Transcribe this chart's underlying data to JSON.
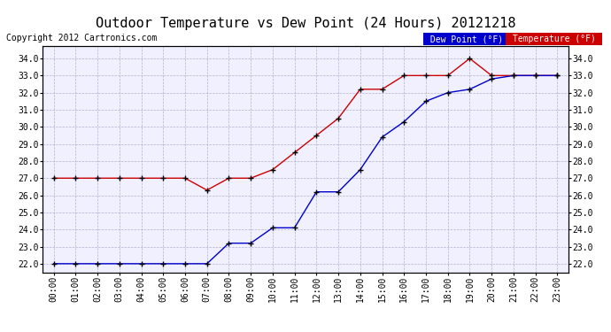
{
  "title": "Outdoor Temperature vs Dew Point (24 Hours) 20121218",
  "copyright": "Copyright 2012 Cartronics.com",
  "hours": [
    "00:00",
    "01:00",
    "02:00",
    "03:00",
    "04:00",
    "05:00",
    "06:00",
    "07:00",
    "08:00",
    "09:00",
    "10:00",
    "11:00",
    "12:00",
    "13:00",
    "14:00",
    "15:00",
    "16:00",
    "17:00",
    "18:00",
    "19:00",
    "20:00",
    "21:00",
    "22:00",
    "23:00"
  ],
  "temperature": [
    27.0,
    27.0,
    27.0,
    27.0,
    27.0,
    27.0,
    27.0,
    26.3,
    27.0,
    27.0,
    27.5,
    28.5,
    29.5,
    30.5,
    32.2,
    32.2,
    33.0,
    33.0,
    33.0,
    34.0,
    33.0,
    33.0,
    33.0,
    33.0
  ],
  "dew_point": [
    22.0,
    22.0,
    22.0,
    22.0,
    22.0,
    22.0,
    22.0,
    22.0,
    23.2,
    23.2,
    24.1,
    24.1,
    26.2,
    26.2,
    27.5,
    29.4,
    30.3,
    31.5,
    32.0,
    32.2,
    32.8,
    33.0,
    33.0,
    33.0
  ],
  "temp_color": "#cc0000",
  "dew_color": "#0000cc",
  "ylim": [
    21.5,
    34.7
  ],
  "yticks": [
    22.0,
    23.0,
    24.0,
    25.0,
    26.0,
    27.0,
    28.0,
    29.0,
    30.0,
    31.0,
    32.0,
    33.0,
    34.0
  ],
  "bg_color": "#ffffff",
  "plot_bg_color": "#f0f0ff",
  "grid_color": "#aaaacc",
  "legend_dew_bg": "#0000cc",
  "legend_temp_bg": "#cc0000",
  "legend_text_color": "#ffffff",
  "title_fontsize": 11,
  "tick_fontsize": 7,
  "copyright_fontsize": 7
}
